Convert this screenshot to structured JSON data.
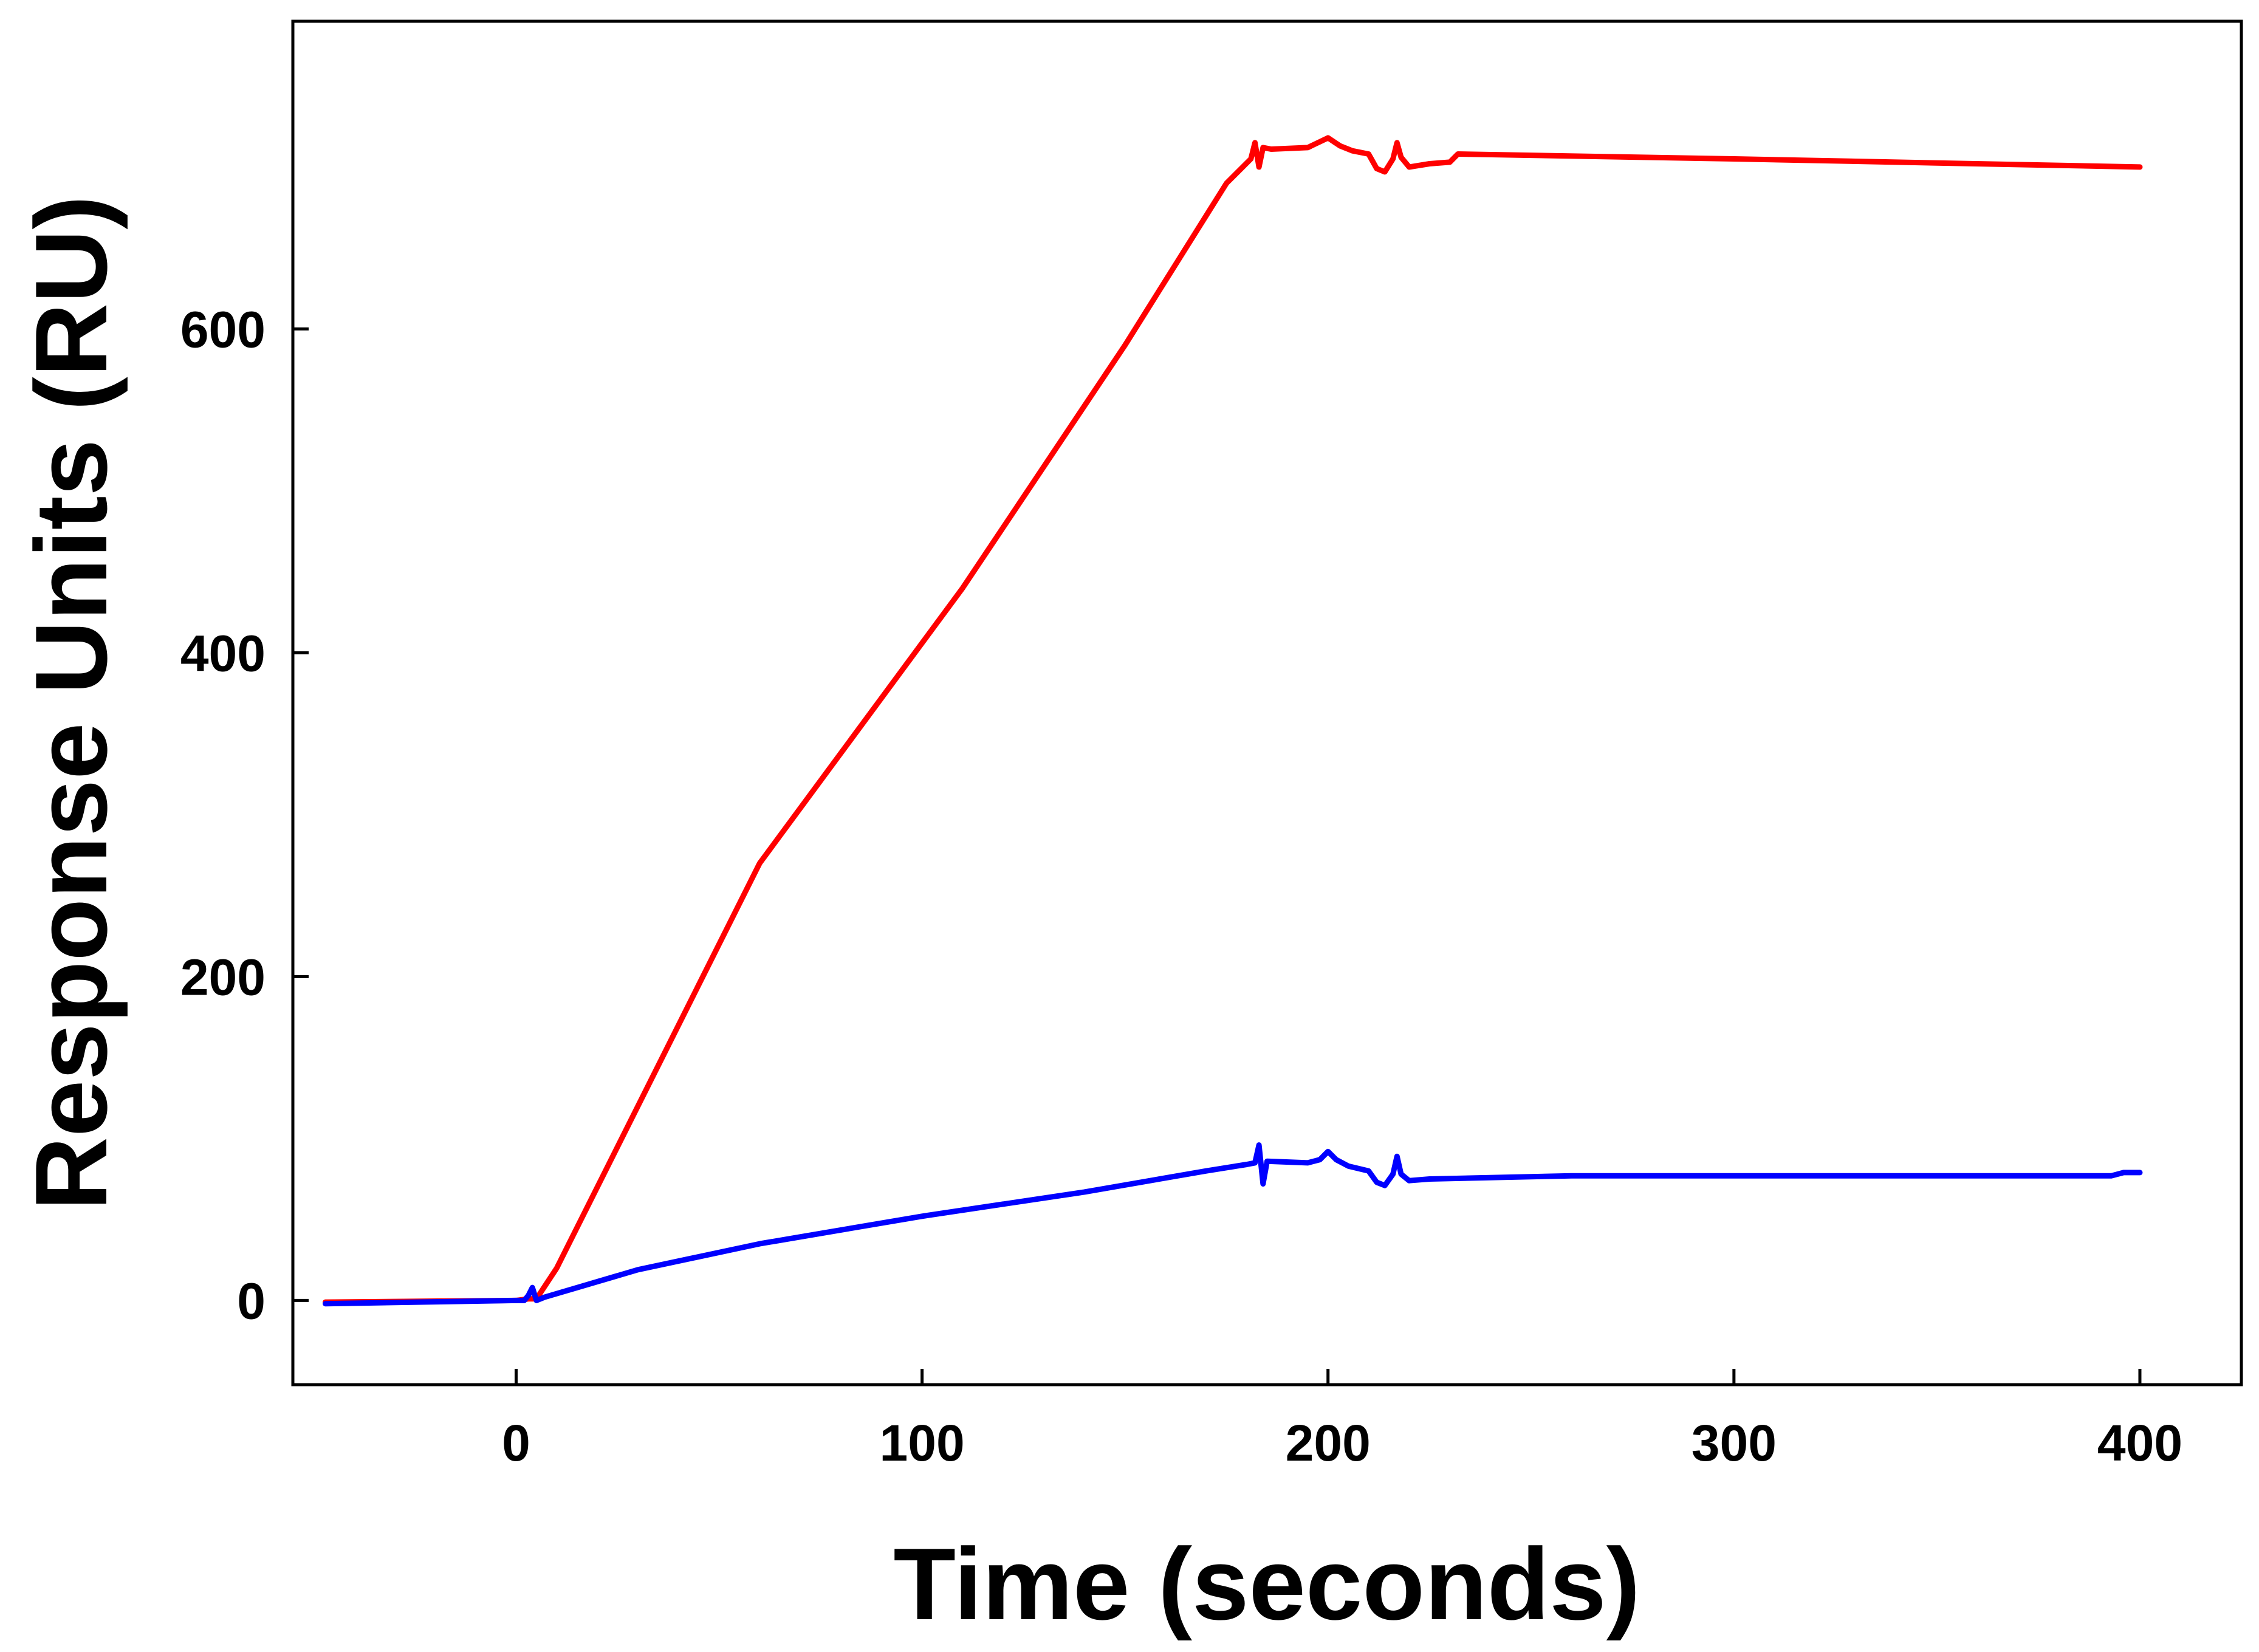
{
  "chart_data": {
    "type": "line",
    "title": "",
    "xlabel": "Time (seconds)",
    "ylabel": "Response Units (RU)",
    "xlim": [
      -55,
      425
    ],
    "ylim": [
      -52,
      790
    ],
    "x_ticks": [
      0,
      100,
      200,
      300,
      400
    ],
    "y_ticks": [
      0,
      200,
      400,
      600
    ],
    "x_tick_labels": [
      "0",
      "100",
      "200",
      "300",
      "400"
    ],
    "y_tick_labels": [
      "0",
      "200",
      "400",
      "600"
    ],
    "grid": false,
    "legend": "none",
    "series": [
      {
        "color": "#ff0000",
        "points": [
          [
            -47,
            -1
          ],
          [
            0,
            0
          ],
          [
            3,
            1
          ],
          [
            5,
            1
          ],
          [
            10,
            20
          ],
          [
            60,
            270
          ],
          [
            110,
            440
          ],
          [
            150,
            590
          ],
          [
            175,
            690
          ],
          [
            181,
            705
          ],
          [
            182,
            715
          ],
          [
            183,
            700
          ],
          [
            184,
            712
          ],
          [
            186,
            711
          ],
          [
            195,
            712
          ],
          [
            200,
            718
          ],
          [
            203,
            713
          ],
          [
            206,
            710
          ],
          [
            210,
            708
          ],
          [
            212,
            699
          ],
          [
            214,
            697
          ],
          [
            216,
            705
          ],
          [
            217,
            715
          ],
          [
            218,
            706
          ],
          [
            220,
            700
          ],
          [
            225,
            702
          ],
          [
            230,
            703
          ],
          [
            232,
            708
          ],
          [
            300,
            705
          ],
          [
            400,
            700
          ]
        ]
      },
      {
        "color": "#0000ff",
        "points": [
          [
            -47,
            -2
          ],
          [
            0,
            0
          ],
          [
            2,
            0
          ],
          [
            3,
            3
          ],
          [
            4,
            8
          ],
          [
            5,
            0
          ],
          [
            7,
            2
          ],
          [
            30,
            19
          ],
          [
            60,
            35
          ],
          [
            100,
            52
          ],
          [
            140,
            67
          ],
          [
            170,
            80
          ],
          [
            180,
            84
          ],
          [
            182,
            85
          ],
          [
            183,
            96
          ],
          [
            184,
            72
          ],
          [
            185,
            86
          ],
          [
            195,
            85
          ],
          [
            198,
            87
          ],
          [
            200,
            92
          ],
          [
            202,
            87
          ],
          [
            205,
            83
          ],
          [
            210,
            80
          ],
          [
            212,
            73
          ],
          [
            214,
            71
          ],
          [
            216,
            78
          ],
          [
            217,
            89
          ],
          [
            218,
            78
          ],
          [
            220,
            74
          ],
          [
            225,
            75
          ],
          [
            260,
            77
          ],
          [
            300,
            77
          ],
          [
            393,
            77
          ],
          [
            396,
            79
          ],
          [
            400,
            79
          ]
        ]
      }
    ]
  }
}
